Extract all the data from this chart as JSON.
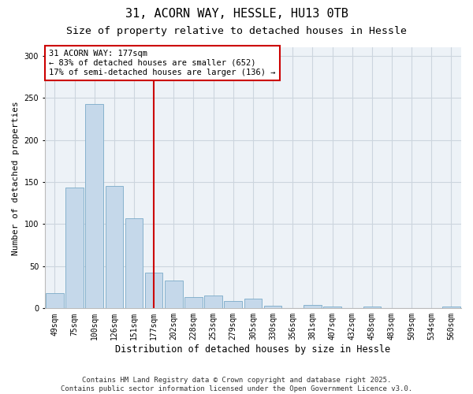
{
  "title1": "31, ACORN WAY, HESSLE, HU13 0TB",
  "title2": "Size of property relative to detached houses in Hessle",
  "xlabel": "Distribution of detached houses by size in Hessle",
  "ylabel": "Number of detached properties",
  "categories": [
    "49sqm",
    "75sqm",
    "100sqm",
    "126sqm",
    "151sqm",
    "177sqm",
    "202sqm",
    "228sqm",
    "253sqm",
    "279sqm",
    "305sqm",
    "330sqm",
    "356sqm",
    "381sqm",
    "407sqm",
    "432sqm",
    "458sqm",
    "483sqm",
    "509sqm",
    "534sqm",
    "560sqm"
  ],
  "values": [
    18,
    143,
    243,
    145,
    107,
    42,
    33,
    13,
    15,
    9,
    12,
    3,
    0,
    4,
    2,
    0,
    2,
    0,
    0,
    0,
    2
  ],
  "bar_color": "#c5d8ea",
  "bar_edge_color": "#7aaac8",
  "vline_x_index": 5,
  "vline_color": "#cc0000",
  "annotation_text": "31 ACORN WAY: 177sqm\n← 83% of detached houses are smaller (652)\n17% of semi-detached houses are larger (136) →",
  "annotation_box_color": "#ffffff",
  "annotation_box_edge_color": "#cc0000",
  "ylim": [
    0,
    310
  ],
  "yticks": [
    0,
    50,
    100,
    150,
    200,
    250,
    300
  ],
  "grid_color": "#ccd5de",
  "bg_color": "#edf2f7",
  "fig_bg_color": "#ffffff",
  "footer_text": "Contains HM Land Registry data © Crown copyright and database right 2025.\nContains public sector information licensed under the Open Government Licence v3.0.",
  "title1_fontsize": 11,
  "title2_fontsize": 9.5,
  "xlabel_fontsize": 8.5,
  "ylabel_fontsize": 8,
  "tick_fontsize": 7,
  "annotation_fontsize": 7.5,
  "footer_fontsize": 6.5
}
